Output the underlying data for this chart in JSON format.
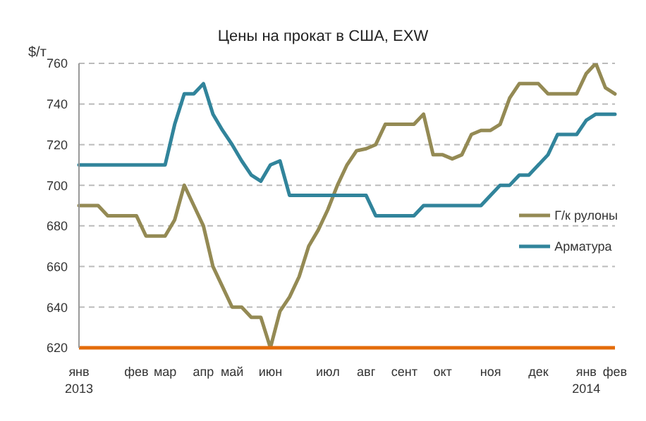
{
  "chart_data": {
    "type": "line",
    "title": "Цены на прокат в США, EXW",
    "ylabel": "$/т",
    "categories": [
      "янв\n2013",
      null,
      null,
      null,
      null,
      null,
      "фев",
      null,
      null,
      "мар",
      null,
      null,
      null,
      "апр",
      null,
      null,
      "май",
      null,
      null,
      null,
      "июн",
      null,
      null,
      null,
      null,
      null,
      "июл",
      null,
      null,
      null,
      "авг",
      null,
      null,
      null,
      "сент",
      null,
      null,
      null,
      "окт",
      null,
      null,
      null,
      null,
      "ноя",
      null,
      null,
      null,
      null,
      "дек",
      null,
      null,
      null,
      null,
      "янв\n2014",
      null,
      null,
      "фев"
    ],
    "series": [
      {
        "name": "Г/к рулоны",
        "color": "#948a54",
        "values": [
          690,
          690,
          690,
          685,
          685,
          685,
          685,
          675,
          675,
          675,
          683,
          700,
          690,
          680,
          660,
          650,
          640,
          640,
          635,
          635,
          620,
          638,
          645,
          655,
          670,
          678,
          688,
          700,
          710,
          717,
          718,
          720,
          730,
          730,
          730,
          730,
          735,
          715,
          715,
          713,
          715,
          725,
          727,
          727,
          730,
          743,
          750,
          750,
          750,
          745,
          745,
          745,
          745,
          755,
          760,
          748,
          745
        ]
      },
      {
        "name": "Арматура",
        "color": "#31849b",
        "values": [
          710,
          710,
          710,
          710,
          710,
          710,
          710,
          710,
          710,
          710,
          730,
          745,
          745,
          750,
          735,
          727,
          720,
          712,
          705,
          702,
          710,
          712,
          695,
          695,
          695,
          695,
          695,
          695,
          695,
          695,
          695,
          685,
          685,
          685,
          685,
          685,
          690,
          690,
          690,
          690,
          690,
          690,
          690,
          695,
          700,
          700,
          705,
          705,
          710,
          715,
          725,
          725,
          725,
          732,
          735,
          735,
          735
        ]
      }
    ],
    "ylim": [
      620,
      760
    ],
    "yticks": [
      620,
      640,
      660,
      680,
      700,
      720,
      740,
      760
    ],
    "grid": "y",
    "legend": "right"
  }
}
